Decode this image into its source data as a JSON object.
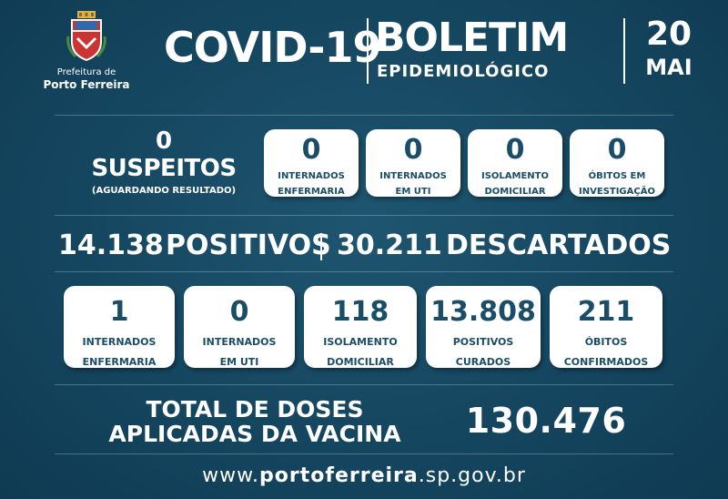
{
  "logo": {
    "line1": "Prefeitura de",
    "line2": "Porto Ferreira"
  },
  "header": {
    "covid": "COVID-19",
    "boletim": "BOLETIM",
    "epidemiologico": "EPIDEMIOLÓGICO",
    "day": "20",
    "month": "MAI"
  },
  "suspeitos": {
    "count": "0",
    "label": "SUSPEITOS",
    "sub": "(AGUARDANDO RESULTADO)"
  },
  "suspect_cards": [
    {
      "value": "0",
      "label1": "INTERNADOS",
      "label2": "ENFERMARIA"
    },
    {
      "value": "0",
      "label1": "INTERNADOS",
      "label2": "EM UTI"
    },
    {
      "value": "0",
      "label1": "ISOLAMENTO",
      "label2": "DOMICILIAR"
    },
    {
      "value": "0",
      "label1": "ÓBITOS EM",
      "label2": "INVESTIGAÇÃO"
    }
  ],
  "totals": {
    "positivos_value": "14.138",
    "positivos_label": "POSITIVOS",
    "descartados_value": "30.211",
    "descartados_label": "DESCARTADOS"
  },
  "positive_cards": [
    {
      "value": "1",
      "label1": "INTERNADOS",
      "label2": "ENFERMARIA"
    },
    {
      "value": "0",
      "label1": "INTERNADOS",
      "label2": "EM UTI"
    },
    {
      "value": "118",
      "label1": "ISOLAMENTO",
      "label2": "DOMICILIAR"
    },
    {
      "value": "13.808",
      "label1": "POSITIVOS",
      "label2": "CURADOS"
    },
    {
      "value": "211",
      "label1": "ÓBITOS",
      "label2": "CONFIRMADOS"
    }
  ],
  "vaccine": {
    "line1": "TOTAL DE DOSES",
    "line2": "APLICADAS DA VACINA",
    "value": "130.476"
  },
  "footer": {
    "prefix": "www.",
    "domain": "portoferreira",
    "suffix": ".sp.gov.br"
  }
}
